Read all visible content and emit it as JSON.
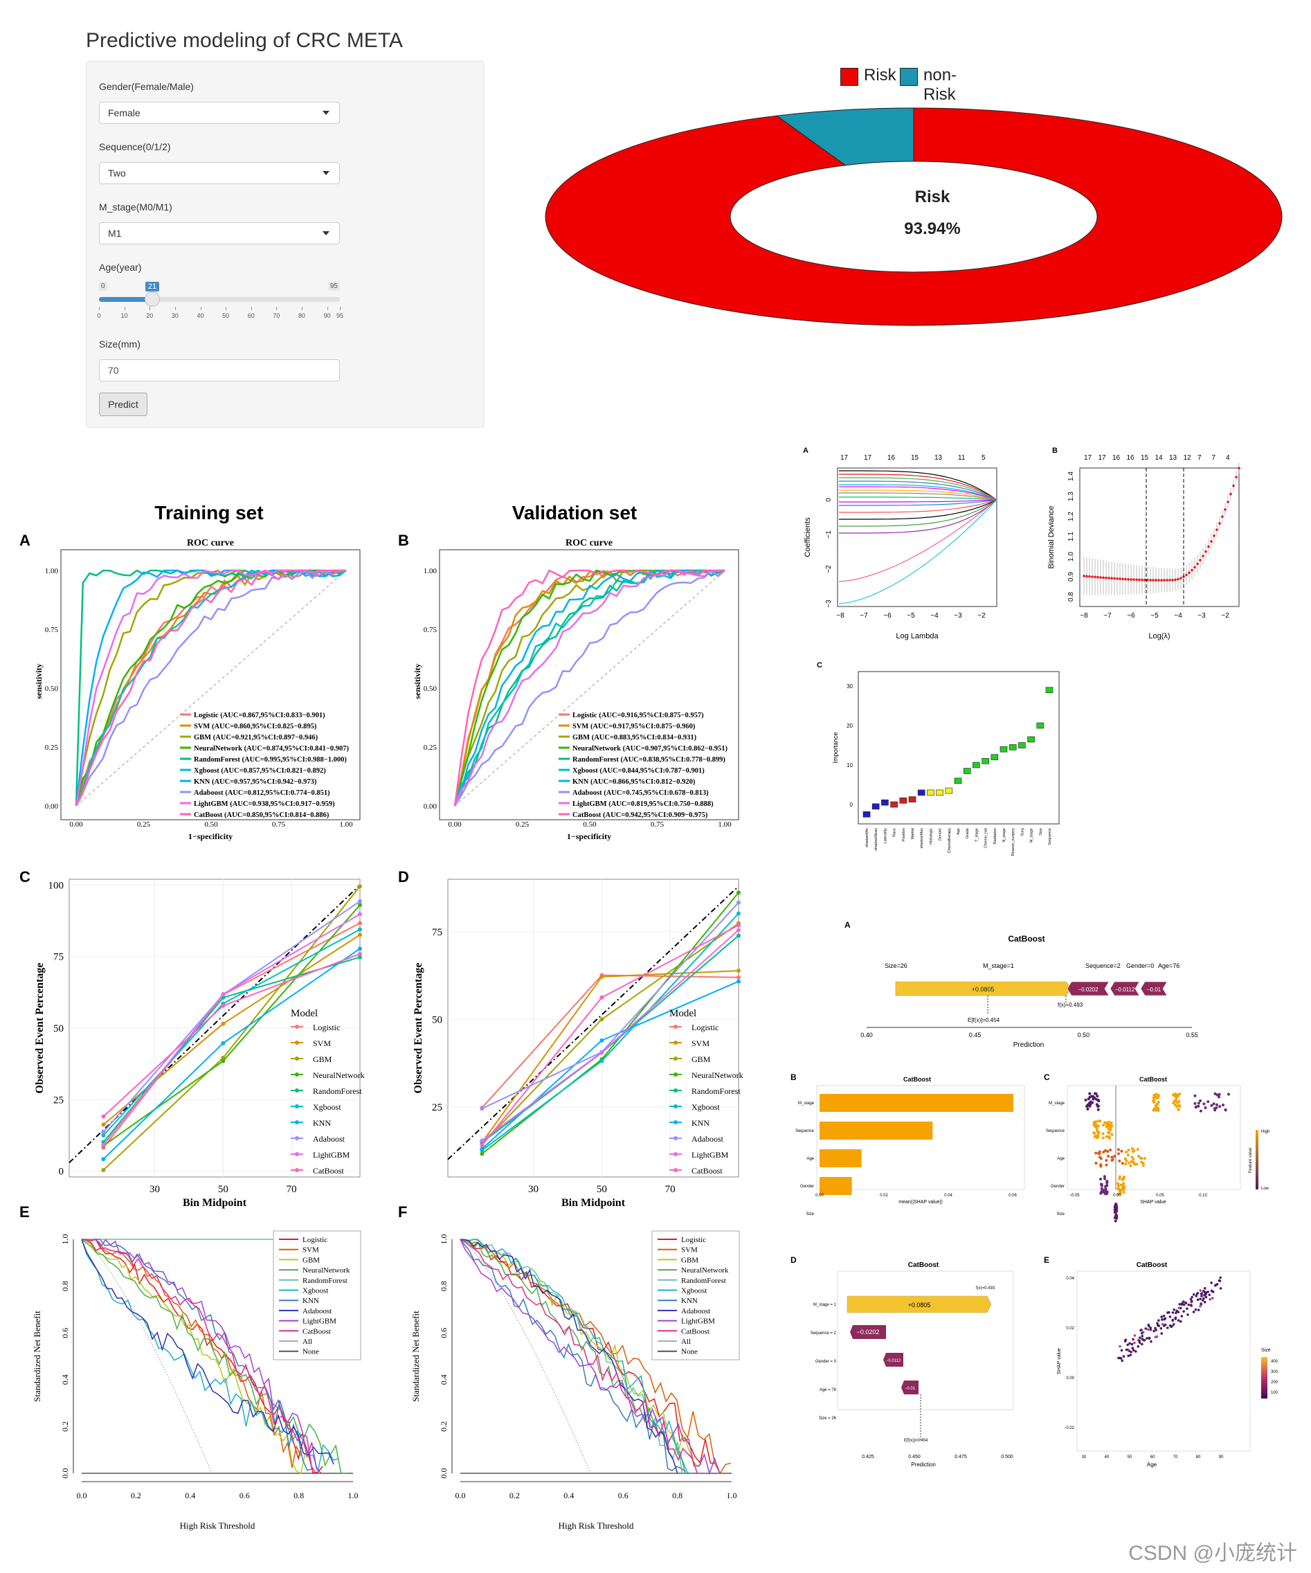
{
  "app": {
    "title": "Predictive modeling of CRC META"
  },
  "form": {
    "gender": {
      "label": "Gender(Female/Male)",
      "value": "Female"
    },
    "sequence": {
      "label": "Sequence(0/1/2)",
      "value": "Two"
    },
    "m_stage": {
      "label": "M_stage(M0/M1)",
      "value": "M1"
    },
    "age": {
      "label": "Age(year)",
      "min": "0",
      "max": "95",
      "value": 21,
      "value_label": "21",
      "ticks": [
        "0",
        "10",
        "20",
        "30",
        "40",
        "50",
        "60",
        "70",
        "80",
        "90",
        "95"
      ]
    },
    "size": {
      "label": "Size(mm)",
      "value": "70"
    },
    "predict_label": "Predict"
  },
  "result": {
    "legend": [
      "Risk",
      "non-Risk"
    ],
    "risk_fraction": 0.9394,
    "center_label": "Risk",
    "center_value": "93.94%",
    "colors": {
      "risk": "#ee0000",
      "nonrisk": "#1a96b0"
    }
  },
  "panels": {
    "A": "A",
    "B": "B",
    "C": "C",
    "D": "D",
    "E": "E",
    "F": "F",
    "training_title": "Training set",
    "validation_title": "Validation set",
    "roc_title": "ROC curve",
    "sensitivity": "sensitivity",
    "specificity": "1−specificity",
    "roc_ticks": [
      "0.00",
      "0.25",
      "0.50",
      "0.75",
      "1.00"
    ]
  },
  "roc_train": [
    "Logistic (AUC=0.867,95%CI:0.833−0.901)",
    "SVM (AUC=0.860,95%CI:0.825−0.895)",
    "GBM (AUC=0.921,95%CI:0.897−0.946)",
    "NeuralNetwork (AUC=0.874,95%CI:0.841−0.907)",
    "RandomForest (AUC=0.995,95%CI:0.988−1.000)",
    "Xgboost (AUC=0.857,95%CI:0.821−0.892)",
    "KNN (AUC=0.957,95%CI:0.942−0.973)",
    "Adaboost (AUC=0.812,95%CI:0.774−0.851)",
    "LightGBM (AUC=0.938,95%CI:0.917−0.959)",
    "CatBoost (AUC=0.850,95%CI:0.814−0.886)"
  ],
  "roc_valid": [
    "Logistic (AUC=0.916,95%CI:0.875−0.957)",
    "SVM (AUC=0.917,95%CI:0.875−0.960)",
    "GBM (AUC=0.883,95%CI:0.834−0.931)",
    "NeuralNetwork (AUC=0.907,95%CI:0.862−0.951)",
    "RandomForest (AUC=0.838,95%CI:0.778−0.899)",
    "Xgboost (AUC=0.844,95%CI:0.787−0.901)",
    "KNN (AUC=0.866,95%CI:0.812−0.920)",
    "Adaboost (AUC=0.745,95%CI:0.678−0.813)",
    "LightGBM (AUC=0.819,95%CI:0.750−0.888)",
    "CatBoost (AUC=0.942,95%CI:0.909−0.975)"
  ],
  "model_colors": [
    "#f8766d",
    "#d89000",
    "#a3a500",
    "#39b600",
    "#00bf7d",
    "#00bfc4",
    "#00b0f6",
    "#9590ff",
    "#e76bf3",
    "#ff62bc"
  ],
  "calib": {
    "model_title": "Model",
    "models": [
      "Logistic",
      "SVM",
      "GBM",
      "NeuralNetwork",
      "RandomForest",
      "Xgboost",
      "KNN",
      "Adaboost",
      "LightGBM",
      "CatBoost"
    ],
    "xlabel": "Bin Midpoint",
    "ylabel": "Observed Event Percentage",
    "x_ticks": [
      "30",
      "50",
      "70"
    ],
    "y_ticks_train": [
      "0",
      "25",
      "50",
      "75",
      "100"
    ],
    "y_ticks_valid": [
      "25",
      "50",
      "75"
    ]
  },
  "dca": {
    "models": [
      "Logistic",
      "SVM",
      "GBM",
      "NeuralNetwork",
      "RandomForest",
      "Xgboost",
      "KNN",
      "Adaboost",
      "LightGBM",
      "CatBoost",
      "All",
      "None"
    ],
    "colors": [
      "#e41a1c",
      "#d95f02",
      "#b8c91a",
      "#4daf4a",
      "#66c2a5",
      "#1ab1c9",
      "#377eb8",
      "#3030b0",
      "#a43ed6",
      "#e7298a",
      "#aaaaaa",
      "#555555"
    ],
    "xlabel": "High Risk Threshold",
    "ylabel": "Standardized Net Benefit",
    "x_ticks": [
      "0.0",
      "0.2",
      "0.4",
      "0.6",
      "0.8",
      "1.0"
    ],
    "y_ticks": [
      "0.0",
      "0.2",
      "0.4",
      "0.6",
      "0.8",
      "1.0"
    ]
  },
  "lasso": {
    "a_label": "A",
    "b_label": "B",
    "a_top": [
      "17",
      "17",
      "16",
      "15",
      "13",
      "11",
      "5"
    ],
    "b_top": [
      "17",
      "17",
      "16",
      "16",
      "15",
      "14",
      "13",
      "12",
      "7",
      "7",
      "4"
    ],
    "a_xlabel": "Log Lambda",
    "a_ylabel": "Coefficients",
    "b_xlabel": "Log(λ)",
    "b_ylabel": "Binomial Deviance",
    "a_x": [
      "−8",
      "−7",
      "−6",
      "−5",
      "−4",
      "−3",
      "−2"
    ],
    "a_y": [
      "0",
      "−1",
      "−2",
      "−3"
    ],
    "b_x": [
      "−8",
      "−7",
      "−6",
      "−5",
      "−4",
      "−3",
      "−2"
    ],
    "b_y": [
      "1.4",
      "1.3",
      "1.2",
      "1.1",
      "1.0",
      "0.9",
      "0.8"
    ]
  },
  "importance": {
    "label": "C",
    "ylabel": "Importance",
    "y_ticks": [
      "0",
      "10",
      "20",
      "30"
    ],
    "features": [
      "shadowMin",
      "shadowMean",
      "Laterality",
      "Race",
      "Position",
      "Marital",
      "shadowMax",
      "Histologic",
      "Gender",
      "Chemotherapy",
      "Age",
      "Grade",
      "T_stage",
      "Chemo_rad",
      "Radiation",
      "N_stage",
      "Reason_surgery",
      "Surg",
      "M_stage",
      "Size",
      "Sequence"
    ]
  },
  "shap": {
    "a": {
      "label": "A",
      "title": "CatBoost",
      "feat": [
        "Size=26",
        "M_stage=1",
        "Sequence=2",
        "Gender=0",
        "Age=76"
      ],
      "bars": [
        "+0.0805",
        "−0.0202",
        "−0.0112",
        "−0.01"
      ],
      "fx": "f(x)=0.493",
      "efx": "E[f(x)]=0.454",
      "xlabel": "Prediction",
      "x_ticks": [
        "0.40",
        "0.45",
        "0.50",
        "0.55"
      ]
    },
    "b": {
      "label": "B",
      "title": "CatBoost",
      "feat": [
        "M_stage",
        "Sequence",
        "Age",
        "Gender",
        "Size"
      ],
      "xlabel": "mean(|SHAP value|)",
      "x_ticks": [
        "0.00",
        "0.02",
        "0.04",
        "0.06"
      ],
      "values": [
        0.06,
        0.035,
        0.013,
        0.01,
        0.0
      ]
    },
    "c": {
      "label": "C",
      "title": "CatBoost",
      "feat": [
        "M_stage",
        "Sequence",
        "Age",
        "Gender",
        "Size"
      ],
      "xlabel": "SHAP value",
      "x_ticks": [
        "−0.05",
        "0.00",
        "0.05",
        "0.10"
      ],
      "legend_title": "Feature value",
      "hi": "High",
      "lo": "Low"
    },
    "d": {
      "label": "D",
      "title": "CatBoost",
      "feat": [
        "M_stage = 1",
        "Sequence = 2",
        "Gender = 0",
        "Age = 76",
        "Size = 26"
      ],
      "bars": [
        "+0.0805",
        "−0.0202",
        "−0.0112",
        "−0.01"
      ],
      "fx": "f(x)=0.493",
      "efx": "E[f(x)]=0.454",
      "xlabel": "Prediction",
      "x_ticks": [
        "0.425",
        "0.450",
        "0.475",
        "0.500"
      ]
    },
    "e": {
      "label": "E",
      "title": "CatBoost",
      "xlabel": "Age",
      "ylabel": "SHAP value",
      "x_ticks": [
        "30",
        "40",
        "50",
        "60",
        "70",
        "80",
        "90"
      ],
      "y_ticks": [
        "0.04",
        "0.02",
        "0.00",
        "−0.02"
      ],
      "legend_title": "Size",
      "legend_ticks": [
        "400",
        "300",
        "200",
        "100"
      ]
    }
  },
  "watermark": "CSDN @小庞统计"
}
